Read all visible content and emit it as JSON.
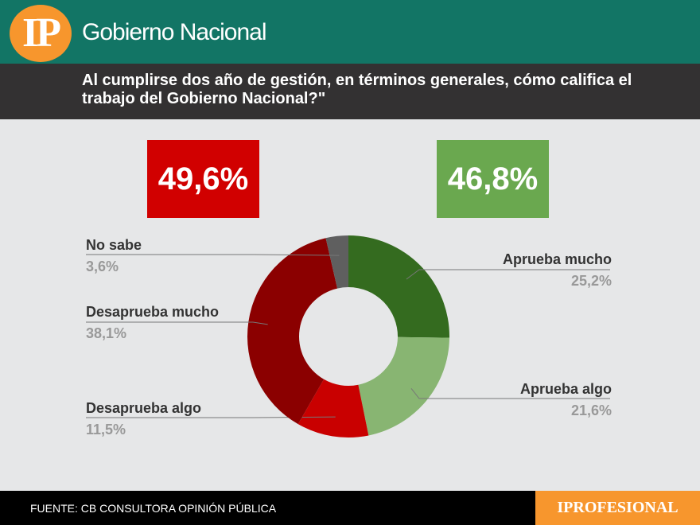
{
  "header": {
    "logo": "IP",
    "title": "Gobierno Nacional"
  },
  "question": "Al cumplirse dos año de gestión, en términos generales, cómo califica el trabajo del Gobierno Nacional?\"",
  "totals": {
    "disapprove": "49,6%",
    "approve": "46,8%",
    "disapprove_color": "#d10000",
    "approve_color": "#6aa84f"
  },
  "chart_data": {
    "type": "pie",
    "donut": true,
    "categories": [
      "Aprueba mucho",
      "Aprueba algo",
      "Desaprueba algo",
      "Desaprueba mucho",
      "No sabe"
    ],
    "values": [
      25.2,
      21.6,
      11.5,
      38.1,
      3.6
    ],
    "labels": [
      "25,2%",
      "21,6%",
      "11,5%",
      "38,1%",
      "3,6%"
    ],
    "colors": [
      "#346b1f",
      "#88b572",
      "#c90000",
      "#8b0000",
      "#5f5f5f"
    ]
  },
  "footer": {
    "source": "FUENTE: CB CONSULTORA OPINIÓN PÚBLICA",
    "brand": "IPROFESIONAL"
  }
}
